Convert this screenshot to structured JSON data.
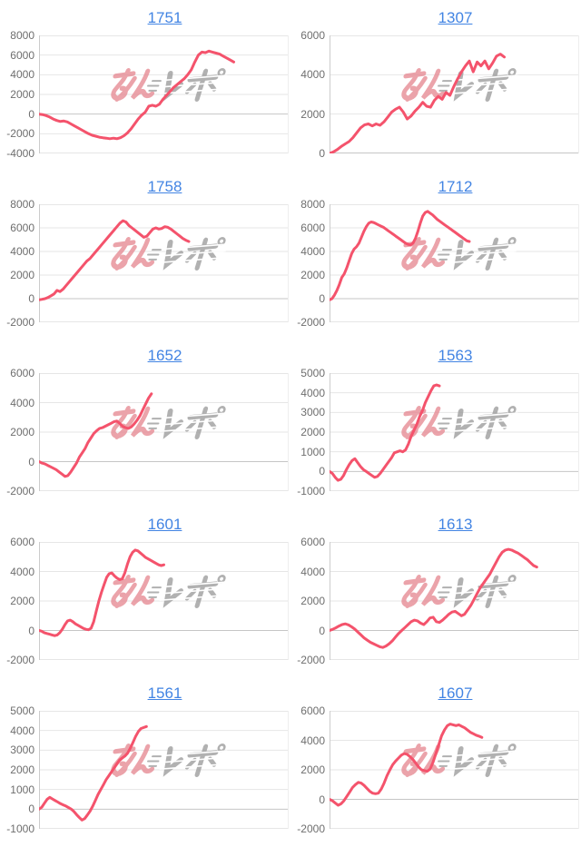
{
  "page": {
    "background": "#ffffff"
  },
  "styles": {
    "line_color": "#f4536c",
    "grid_color": "#e6e6e6",
    "zero_line_color": "#c6c6c6",
    "axis_color": "#cccccc",
    "right_edge_color": "#eeeeee",
    "tick_color": "#6e6e6e",
    "title_color": "#4284e3"
  },
  "watermark": {
    "text": "みんレポ",
    "pink_color": "#e78d96",
    "gray_color": "#9e9e9e"
  },
  "chart_data": [
    {
      "type": "line",
      "title": "1751",
      "xlabel": "",
      "ylabel": "",
      "ylim": [
        -4000,
        8000
      ],
      "yticks": [
        8000,
        6000,
        4000,
        2000,
        0,
        -2000,
        -4000
      ],
      "end_frac": 0.78,
      "values": [
        0,
        -50,
        -150,
        -300,
        -500,
        -650,
        -750,
        -700,
        -800,
        -1000,
        -1200,
        -1400,
        -1600,
        -1800,
        -2000,
        -2150,
        -2250,
        -2350,
        -2400,
        -2450,
        -2500,
        -2450,
        -2500,
        -2400,
        -2200,
        -1900,
        -1500,
        -1000,
        -500,
        -100,
        200,
        800,
        900,
        800,
        1000,
        1500,
        1900,
        2300,
        2700,
        3000,
        3300,
        3600,
        4000,
        4500,
        5300,
        6000,
        6300,
        6250,
        6400,
        6300,
        6200,
        6100,
        5900,
        5700,
        5500,
        5300
      ]
    },
    {
      "type": "line",
      "title": "1307",
      "xlabel": "",
      "ylabel": "",
      "ylim": [
        0,
        6000
      ],
      "yticks": [
        6000,
        4000,
        2000,
        0
      ],
      "end_frac": 0.7,
      "values": [
        0,
        80,
        200,
        350,
        480,
        600,
        800,
        1050,
        1300,
        1450,
        1500,
        1400,
        1500,
        1430,
        1600,
        1850,
        2100,
        2250,
        2350,
        2100,
        1750,
        1900,
        2150,
        2350,
        2600,
        2400,
        2350,
        2700,
        2900,
        2750,
        3100,
        2950,
        3400,
        3800,
        4150,
        4450,
        4700,
        4150,
        4650,
        4450,
        4700,
        4300,
        4600,
        4950,
        5050,
        4900
      ]
    },
    {
      "type": "line",
      "title": "1758",
      "xlabel": "",
      "ylabel": "",
      "ylim": [
        -2000,
        8000
      ],
      "yticks": [
        8000,
        6000,
        4000,
        2000,
        0,
        -2000
      ],
      "end_frac": 0.6,
      "values": [
        -100,
        -50,
        0,
        100,
        250,
        400,
        700,
        600,
        800,
        1100,
        1400,
        1700,
        2000,
        2300,
        2600,
        2900,
        3200,
        3400,
        3700,
        4000,
        4300,
        4600,
        4900,
        5200,
        5500,
        5800,
        6100,
        6400,
        6600,
        6500,
        6200,
        6000,
        5800,
        5600,
        5400,
        5200,
        5300,
        5600,
        5900,
        6000,
        5900,
        5950,
        6100,
        6050,
        5900,
        5700,
        5500,
        5300,
        5100,
        4950,
        4850
      ]
    },
    {
      "type": "line",
      "title": "1712",
      "xlabel": "",
      "ylabel": "",
      "ylim": [
        -2000,
        8000
      ],
      "yticks": [
        8000,
        6000,
        4000,
        2000,
        0,
        -2000
      ],
      "end_frac": 0.56,
      "values": [
        -100,
        0,
        300,
        700,
        1200,
        1800,
        2100,
        2600,
        3200,
        3800,
        4200,
        4400,
        4700,
        5200,
        5700,
        6100,
        6400,
        6500,
        6450,
        6350,
        6250,
        6150,
        6050,
        5900,
        5750,
        5600,
        5450,
        5300,
        5150,
        5000,
        4850,
        4700,
        4600,
        4550,
        4700,
        5100,
        5700,
        6400,
        7000,
        7300,
        7400,
        7250,
        7100,
        6900,
        6700,
        6550,
        6400,
        6250,
        6100,
        5950,
        5800,
        5650,
        5500,
        5350,
        5200,
        5050,
        4900,
        4850
      ]
    },
    {
      "type": "line",
      "title": "1652",
      "xlabel": "",
      "ylabel": "",
      "ylim": [
        -2000,
        6000
      ],
      "yticks": [
        6000,
        4000,
        2000,
        0,
        -2000
      ],
      "end_frac": 0.45,
      "values": [
        0,
        -100,
        -150,
        -250,
        -350,
        -450,
        -550,
        -700,
        -850,
        -1000,
        -950,
        -700,
        -400,
        -100,
        300,
        600,
        900,
        1300,
        1600,
        1900,
        2100,
        2250,
        2300,
        2400,
        2500,
        2600,
        2700,
        2750,
        2600,
        2400,
        2300,
        2250,
        2350,
        2550,
        2800,
        3100,
        3500,
        3900,
        4300,
        4600
      ]
    },
    {
      "type": "line",
      "title": "1563",
      "xlabel": "",
      "ylabel": "",
      "ylim": [
        -1000,
        5000
      ],
      "yticks": [
        5000,
        4000,
        3000,
        2000,
        1000,
        0,
        -1000
      ],
      "end_frac": 0.44,
      "values": [
        0,
        -100,
        -300,
        -450,
        -400,
        -200,
        100,
        350,
        550,
        650,
        450,
        250,
        100,
        0,
        -100,
        -200,
        -300,
        -250,
        -100,
        100,
        300,
        500,
        700,
        950,
        1000,
        1050,
        1000,
        1100,
        1400,
        1800,
        2100,
        2400,
        2800,
        3100,
        3500,
        3800,
        4100,
        4350,
        4400,
        4350
      ]
    },
    {
      "type": "line",
      "title": "1601",
      "xlabel": "",
      "ylabel": "",
      "ylim": [
        -2000,
        6000
      ],
      "yticks": [
        6000,
        4000,
        2000,
        0,
        -2000
      ],
      "end_frac": 0.5,
      "values": [
        0,
        -50,
        -150,
        -200,
        -250,
        -300,
        -350,
        -300,
        -150,
        100,
        400,
        650,
        700,
        600,
        450,
        350,
        250,
        150,
        80,
        50,
        150,
        600,
        1300,
        2000,
        2600,
        3100,
        3600,
        3850,
        3900,
        3700,
        3550,
        3450,
        3500,
        3900,
        4500,
        5000,
        5300,
        5450,
        5400,
        5250,
        5100,
        4950,
        4850,
        4750,
        4650,
        4550,
        4450,
        4400,
        4450
      ]
    },
    {
      "type": "line",
      "title": "1613",
      "xlabel": "",
      "ylabel": "",
      "ylim": [
        -2000,
        6000
      ],
      "yticks": [
        6000,
        4000,
        2000,
        0,
        -2000
      ],
      "end_frac": 0.83,
      "values": [
        0,
        80,
        180,
        300,
        400,
        450,
        380,
        250,
        100,
        -100,
        -300,
        -500,
        -650,
        -800,
        -900,
        -1000,
        -1100,
        -1150,
        -1050,
        -900,
        -700,
        -450,
        -200,
        0,
        200,
        400,
        600,
        700,
        650,
        500,
        400,
        600,
        850,
        900,
        600,
        550,
        700,
        900,
        1100,
        1250,
        1300,
        1150,
        1000,
        1100,
        1400,
        1700,
        2100,
        2500,
        2900,
        3200,
        3500,
        3800,
        4200,
        4600,
        5000,
        5300,
        5450,
        5500,
        5450,
        5350,
        5250,
        5100,
        4950,
        4800,
        4600,
        4400,
        4300
      ]
    },
    {
      "type": "line",
      "title": "1561",
      "xlabel": "",
      "ylabel": "",
      "ylim": [
        -1000,
        5000
      ],
      "yticks": [
        5000,
        4000,
        3000,
        2000,
        1000,
        0,
        -1000
      ],
      "end_frac": 0.43,
      "values": [
        0,
        100,
        300,
        500,
        600,
        520,
        440,
        360,
        280,
        220,
        160,
        80,
        0,
        -120,
        -280,
        -420,
        -550,
        -480,
        -300,
        -100,
        150,
        450,
        750,
        1000,
        1250,
        1500,
        1700,
        1900,
        2100,
        2300,
        2500,
        2600,
        2700,
        2850,
        3100,
        3400,
        3700,
        3950,
        4100,
        4150,
        4200
      ]
    },
    {
      "type": "line",
      "title": "1607",
      "xlabel": "",
      "ylabel": "",
      "ylim": [
        -2000,
        6000
      ],
      "yticks": [
        6000,
        4000,
        2000,
        0,
        -2000
      ],
      "end_frac": 0.61,
      "values": [
        0,
        -100,
        -250,
        -400,
        -300,
        -100,
        200,
        500,
        800,
        1000,
        1150,
        1100,
        950,
        750,
        550,
        420,
        380,
        420,
        700,
        1100,
        1600,
        2000,
        2350,
        2600,
        2800,
        3000,
        3100,
        3050,
        2900,
        2700,
        2450,
        2200,
        2000,
        1950,
        1900,
        2050,
        2500,
        3100,
        3700,
        4300,
        4700,
        5000,
        5100,
        5050,
        5000,
        5050,
        4950,
        4850,
        4700,
        4550,
        4450,
        4350,
        4280,
        4200
      ]
    }
  ],
  "layout": {
    "columns": 2,
    "rows": 5,
    "grid": "horizontal-gridlines-only",
    "x_axis_labels": "none",
    "legend": "none"
  }
}
